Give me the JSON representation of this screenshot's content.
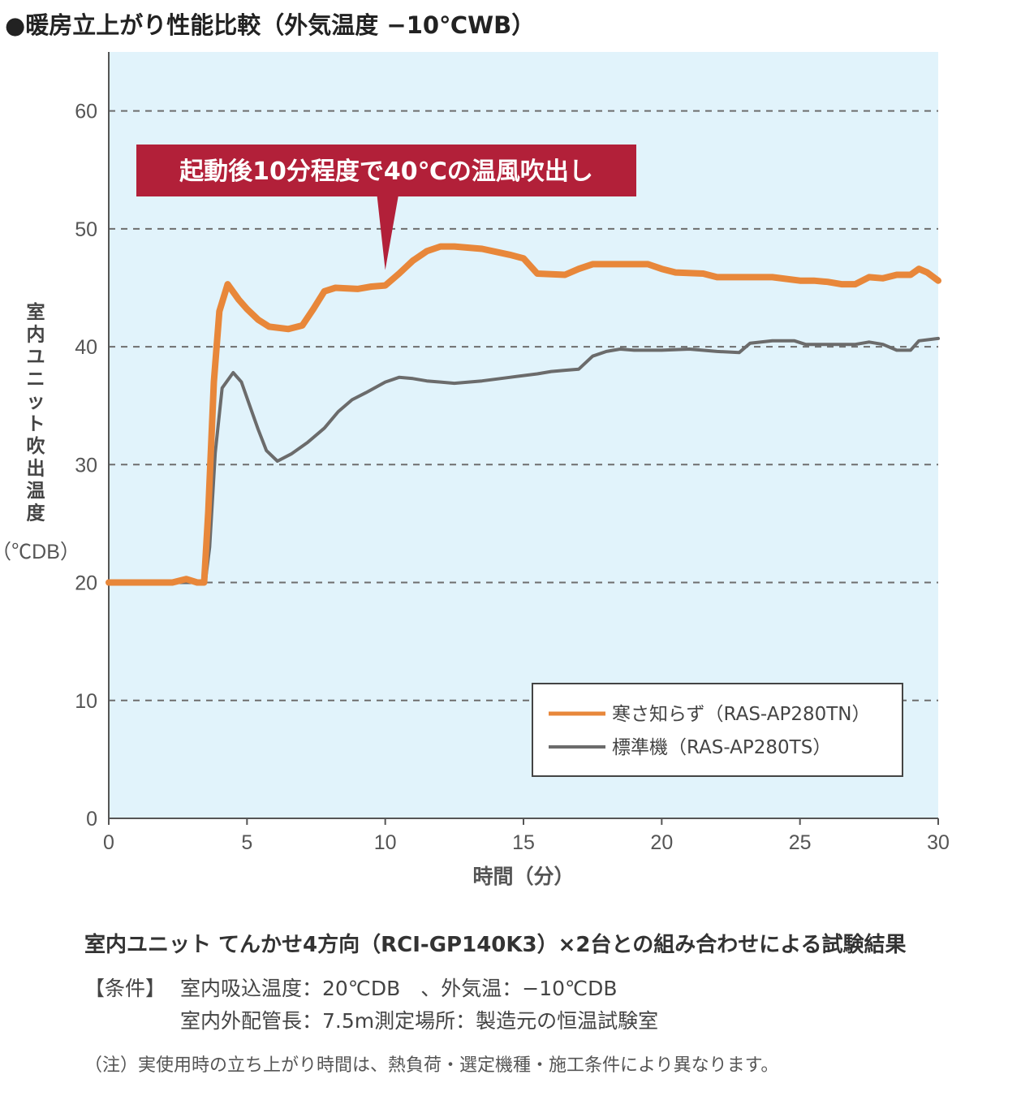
{
  "title": "●暖房立上がり性能比較（外気温度 −10℃WB）",
  "chart_data": {
    "type": "line",
    "xlabel": "時間（分）",
    "ylabel": "室内ユニット吹出温度",
    "ylabel_unit": "（℃DB）",
    "xlim": [
      0,
      30
    ],
    "ylim": [
      0,
      65
    ],
    "x_ticks": [
      0,
      5,
      10,
      15,
      20,
      25,
      30
    ],
    "y_ticks": [
      0,
      10,
      20,
      30,
      40,
      50,
      60
    ],
    "grid": "horizontal-dashed",
    "legend_position": "bottom-right",
    "annotation": "起動後10分程度で40℃の温風吹出し",
    "annotation_x": 10,
    "colors": {
      "plot_bg": "#e1f3fb",
      "series1": "#e8873a",
      "series2": "#6b6b6b",
      "annotation_bg": "#b22039"
    },
    "series": [
      {
        "name": "寒さ知らず（RAS-AP280TN）",
        "points": [
          [
            0,
            20
          ],
          [
            2.3,
            20
          ],
          [
            2.8,
            20.3
          ],
          [
            3.2,
            20
          ],
          [
            3.45,
            20
          ],
          [
            3.6,
            26
          ],
          [
            3.8,
            37
          ],
          [
            4,
            43
          ],
          [
            4.3,
            45.3
          ],
          [
            4.7,
            44
          ],
          [
            5,
            43.2
          ],
          [
            5.4,
            42.3
          ],
          [
            5.8,
            41.7
          ],
          [
            6.5,
            41.5
          ],
          [
            7,
            41.8
          ],
          [
            7.4,
            43.2
          ],
          [
            7.8,
            44.7
          ],
          [
            8.2,
            45
          ],
          [
            9,
            44.9
          ],
          [
            9.5,
            45.1
          ],
          [
            10,
            45.2
          ],
          [
            10.5,
            46.2
          ],
          [
            11,
            47.3
          ],
          [
            11.5,
            48.1
          ],
          [
            12,
            48.5
          ],
          [
            12.5,
            48.5
          ],
          [
            13.5,
            48.3
          ],
          [
            14.5,
            47.8
          ],
          [
            15,
            47.5
          ],
          [
            15.5,
            46.2
          ],
          [
            16.5,
            46.1
          ],
          [
            17,
            46.6
          ],
          [
            17.5,
            47
          ],
          [
            18.5,
            47
          ],
          [
            19.5,
            47
          ],
          [
            20,
            46.6
          ],
          [
            20.5,
            46.3
          ],
          [
            21.5,
            46.2
          ],
          [
            22,
            45.9
          ],
          [
            23,
            45.9
          ],
          [
            24,
            45.9
          ],
          [
            25,
            45.6
          ],
          [
            25.5,
            45.6
          ],
          [
            26,
            45.5
          ],
          [
            26.5,
            45.3
          ],
          [
            27,
            45.3
          ],
          [
            27.5,
            45.9
          ],
          [
            28,
            45.8
          ],
          [
            28.5,
            46.1
          ],
          [
            29,
            46.1
          ],
          [
            29.3,
            46.6
          ],
          [
            29.6,
            46.3
          ],
          [
            30,
            45.6
          ]
        ]
      },
      {
        "name": "標準機（RAS-AP280TS）",
        "points": [
          [
            0,
            20
          ],
          [
            2.3,
            20
          ],
          [
            3.3,
            20
          ],
          [
            3.5,
            20.2
          ],
          [
            3.65,
            23
          ],
          [
            3.85,
            31
          ],
          [
            4.1,
            36.5
          ],
          [
            4.5,
            37.8
          ],
          [
            4.8,
            37
          ],
          [
            5.1,
            35
          ],
          [
            5.4,
            33
          ],
          [
            5.7,
            31.2
          ],
          [
            6.1,
            30.3
          ],
          [
            6.6,
            30.9
          ],
          [
            7.2,
            31.9
          ],
          [
            7.8,
            33.1
          ],
          [
            8.3,
            34.5
          ],
          [
            8.8,
            35.5
          ],
          [
            9.3,
            36.1
          ],
          [
            10,
            37
          ],
          [
            10.5,
            37.4
          ],
          [
            11,
            37.3
          ],
          [
            11.5,
            37.1
          ],
          [
            12,
            37
          ],
          [
            12.5,
            36.9
          ],
          [
            13.5,
            37.1
          ],
          [
            14.5,
            37.4
          ],
          [
            15.5,
            37.7
          ],
          [
            16,
            37.9
          ],
          [
            16.5,
            38
          ],
          [
            17,
            38.1
          ],
          [
            17.5,
            39.2
          ],
          [
            18,
            39.6
          ],
          [
            18.5,
            39.8
          ],
          [
            19,
            39.7
          ],
          [
            20,
            39.7
          ],
          [
            21,
            39.8
          ],
          [
            22,
            39.6
          ],
          [
            22.8,
            39.5
          ],
          [
            23.2,
            40.3
          ],
          [
            24,
            40.5
          ],
          [
            24.8,
            40.5
          ],
          [
            25.2,
            40.2
          ],
          [
            26,
            40.2
          ],
          [
            27,
            40.2
          ],
          [
            27.5,
            40.4
          ],
          [
            28,
            40.2
          ],
          [
            28.5,
            39.7
          ],
          [
            29,
            39.7
          ],
          [
            29.3,
            40.5
          ],
          [
            30,
            40.7
          ]
        ]
      }
    ]
  },
  "notes": {
    "combo": "室内ユニット てんかせ4方向（RCI-GP140K3）×2台との組み合わせによる試験結果",
    "cond_label": "【条件】",
    "cond1": "室内吸込温度：20℃DB　、外気温：−10℃DB",
    "cond2": "室内外配管長：7.5m測定場所：製造元の恒温試験室",
    "footnote": "（注）実使用時の立ち上がり時間は、熱負荷・選定機種・施工条件により異なります。"
  }
}
